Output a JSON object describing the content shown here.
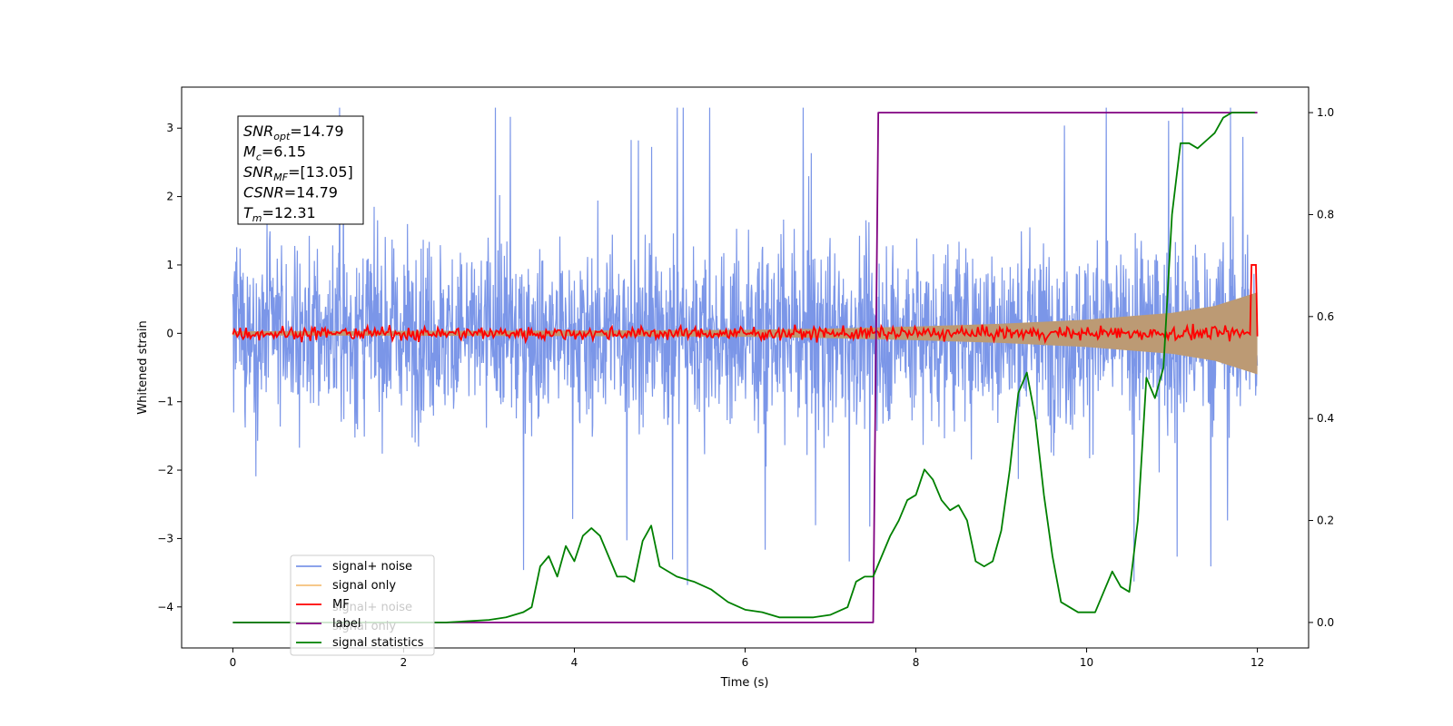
{
  "chart_data": {
    "type": "line",
    "xlabel": "Time (s)",
    "ylabel": "Whitened strain",
    "xlim": [
      -0.6,
      12.6
    ],
    "ylim_left": [
      -4.6,
      3.6
    ],
    "ylim_right": [
      -0.05,
      1.05
    ],
    "x_ticks": [
      0,
      2,
      4,
      6,
      8,
      10,
      12
    ],
    "x_tick_labels": [
      "0",
      "2",
      "4",
      "6",
      "8",
      "10",
      "12"
    ],
    "y_ticks_left": [
      -4,
      -3,
      -2,
      -1,
      0,
      1,
      2,
      3
    ],
    "y_tick_labels_left": [
      "−4",
      "−3",
      "−2",
      "−1",
      "0",
      "1",
      "2",
      "3"
    ],
    "y_ticks_right": [
      0.0,
      0.2,
      0.4,
      0.6,
      0.8,
      1.0
    ],
    "y_tick_labels_right": [
      "0.0",
      "0.2",
      "0.4",
      "0.6",
      "0.8",
      "1.0"
    ],
    "grid": false,
    "legend_position": "lower-left",
    "annotation": {
      "lines": [
        {
          "sym": "SNR",
          "sub": "opt",
          "text": "=14.79"
        },
        {
          "sym": "M",
          "sub": "c",
          "text": "=6.15"
        },
        {
          "sym": "SNR",
          "sub": "MF",
          "text": "=[13.05]"
        },
        {
          "sym": "CSNR",
          "sub": "",
          "text": "=14.79"
        },
        {
          "sym": "T",
          "sub": "m",
          "text": "=12.31"
        }
      ]
    },
    "legend": [
      {
        "label": "signal+ noise",
        "color": "#7b96e8"
      },
      {
        "label": "signal only",
        "color": "#f5c07a"
      },
      {
        "label": "MF",
        "color": "#ff0000"
      },
      {
        "label": "label",
        "color": "#800080"
      },
      {
        "label": "signal statistics",
        "color": "#008000"
      }
    ],
    "legend_ghost": [
      "signal+ noise",
      "signal only"
    ],
    "series": [
      {
        "name": "signal+ noise",
        "axis": "left",
        "color": "#7b96e8",
        "kind": "noise",
        "x_range": [
          0,
          12
        ],
        "typical_range": [
          -2.2,
          2.2
        ],
        "extremes": [
          -4.2,
          3.3
        ]
      },
      {
        "name": "signal only",
        "axis": "left",
        "color": "#bc9a74",
        "kind": "envelope",
        "x": [
          0,
          4,
          6,
          7,
          8,
          9,
          10,
          11,
          11.5,
          12
        ],
        "y": [
          0.03,
          0.04,
          0.05,
          0.07,
          0.1,
          0.14,
          0.2,
          0.3,
          0.4,
          0.6
        ]
      },
      {
        "name": "MF",
        "axis": "left",
        "color": "#ff0000",
        "kind": "noisy_flat",
        "x_range": [
          0,
          12
        ],
        "amplitude": 0.15,
        "peak": {
          "x": 11.97,
          "y": 1.0
        }
      },
      {
        "name": "label",
        "axis": "right",
        "color": "#800080",
        "x": [
          0,
          7.5,
          7.56,
          12
        ],
        "y": [
          0,
          0,
          1.0,
          1.0
        ]
      },
      {
        "name": "signal statistics",
        "axis": "right",
        "color": "#008000",
        "x": [
          0,
          0.2,
          0.5,
          1.0,
          1.5,
          2.0,
          2.5,
          3.0,
          3.2,
          3.4,
          3.5,
          3.6,
          3.7,
          3.8,
          3.9,
          4.0,
          4.1,
          4.2,
          4.3,
          4.4,
          4.5,
          4.6,
          4.7,
          4.8,
          4.9,
          5.0,
          5.2,
          5.4,
          5.6,
          5.8,
          6.0,
          6.2,
          6.4,
          6.6,
          6.8,
          7.0,
          7.2,
          7.3,
          7.4,
          7.5,
          7.6,
          7.7,
          7.8,
          7.9,
          8.0,
          8.1,
          8.2,
          8.3,
          8.4,
          8.5,
          8.6,
          8.7,
          8.8,
          8.9,
          9.0,
          9.1,
          9.2,
          9.3,
          9.4,
          9.5,
          9.6,
          9.7,
          9.8,
          9.9,
          10.0,
          10.1,
          10.2,
          10.3,
          10.4,
          10.5,
          10.6,
          10.7,
          10.8,
          10.9,
          11.0,
          11.1,
          11.2,
          11.3,
          11.4,
          11.5,
          11.6,
          11.7,
          11.8,
          11.9,
          11.97
        ],
        "y": [
          0.0,
          0.0,
          0.0,
          0.0,
          0.0,
          0.0,
          0.0,
          0.005,
          0.01,
          0.02,
          0.03,
          0.11,
          0.13,
          0.09,
          0.15,
          0.12,
          0.17,
          0.185,
          0.17,
          0.13,
          0.09,
          0.09,
          0.08,
          0.16,
          0.19,
          0.11,
          0.09,
          0.08,
          0.065,
          0.04,
          0.025,
          0.02,
          0.01,
          0.01,
          0.01,
          0.015,
          0.03,
          0.08,
          0.09,
          0.09,
          0.13,
          0.17,
          0.2,
          0.24,
          0.25,
          0.3,
          0.28,
          0.24,
          0.22,
          0.23,
          0.2,
          0.12,
          0.11,
          0.12,
          0.18,
          0.3,
          0.45,
          0.49,
          0.4,
          0.25,
          0.13,
          0.04,
          0.03,
          0.02,
          0.02,
          0.02,
          0.06,
          0.1,
          0.07,
          0.06,
          0.2,
          0.48,
          0.44,
          0.5,
          0.8,
          0.94,
          0.94,
          0.93,
          0.945,
          0.96,
          0.99,
          1.0,
          1.0,
          1.0,
          1.0
        ]
      }
    ]
  }
}
